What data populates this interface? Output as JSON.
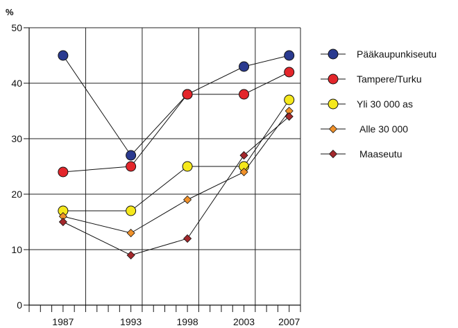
{
  "chart_data": {
    "type": "line",
    "ylabel": "%",
    "ylim": [
      0,
      50
    ],
    "yticks": [
      0,
      10,
      20,
      30,
      40,
      50
    ],
    "x": [
      1987,
      1993,
      1998,
      2003,
      2007
    ],
    "xlim": [
      1984,
      2008
    ],
    "grid": true,
    "legend_position": "right",
    "series": [
      {
        "name": "Pääkaupunkiseutu",
        "marker": "circle",
        "color": "#2a3a8f",
        "values": [
          45,
          27,
          38,
          43,
          45
        ]
      },
      {
        "name": "Tampere/Turku",
        "marker": "circle",
        "color": "#e3262b",
        "values": [
          24,
          25,
          38,
          38,
          42
        ]
      },
      {
        "name": "Yli 30 000 as",
        "marker": "circle",
        "color": "#f5e81c",
        "values": [
          17,
          17,
          25,
          25,
          37
        ]
      },
      {
        "name": "Alle 30 000",
        "marker": "diamond",
        "color": "#f0912a",
        "values": [
          16,
          13,
          19,
          24,
          35
        ]
      },
      {
        "name": "Maaseutu",
        "marker": "diamond",
        "color": "#a3282c",
        "values": [
          15,
          9,
          12,
          27,
          34
        ]
      }
    ]
  }
}
